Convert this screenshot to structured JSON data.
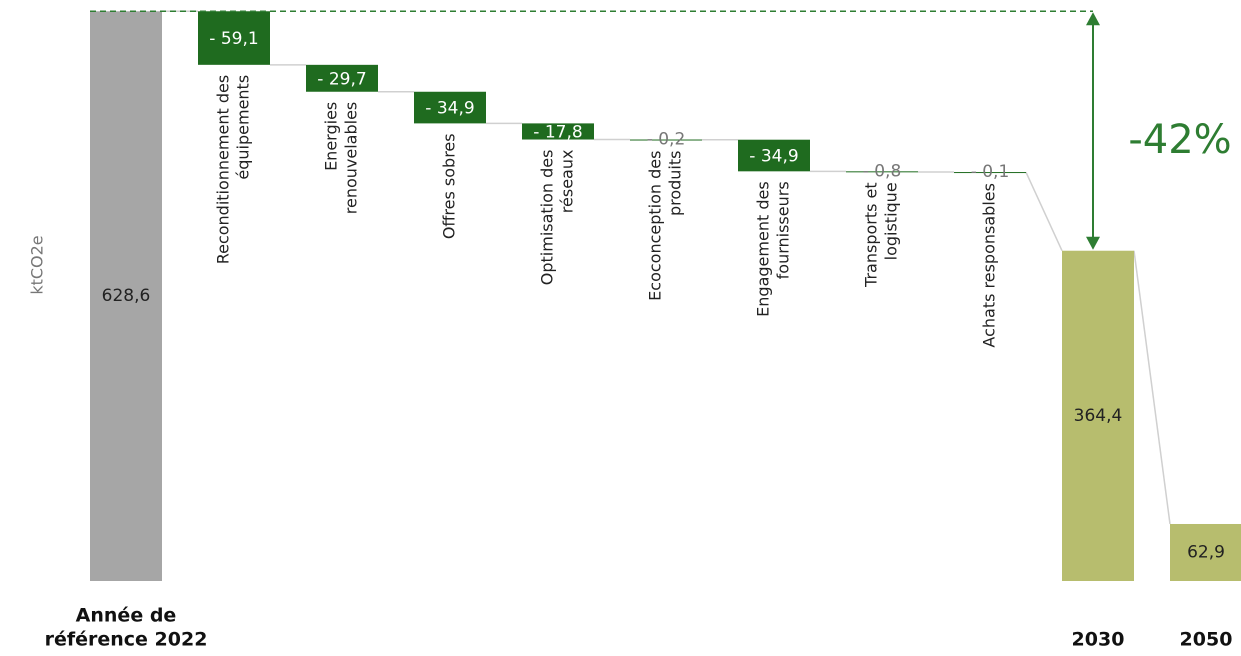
{
  "chart_data": {
    "type": "waterfall",
    "y_label": "ktCO2e",
    "categories": [
      [
        "Année de",
        "référence 2022"
      ],
      [
        "Reconditionnement des",
        "équipements"
      ],
      [
        "Energies",
        "renouvelables"
      ],
      [
        "Offres sobres"
      ],
      [
        "Optimisation des",
        "réseaux"
      ],
      [
        "Ecoconception des",
        "produits"
      ],
      [
        "Engagement des",
        "fournisseurs"
      ],
      [
        "Transports et",
        "logistique"
      ],
      [
        "Achats responsables"
      ],
      [
        "2030"
      ],
      [
        "2050"
      ]
    ],
    "measure": [
      "absolute",
      "relative",
      "relative",
      "relative",
      "relative",
      "relative",
      "relative",
      "relative",
      "relative",
      "absolute",
      "absolute"
    ],
    "values": [
      628.6,
      -59.1,
      -29.7,
      -34.9,
      -17.8,
      -0.2,
      -34.9,
      -0.8,
      -0.1,
      364.4,
      62.9
    ],
    "value_labels": [
      "628,6",
      "- 59,1",
      "- 29,7",
      "- 34,9",
      "- 17,8",
      "- 0,2",
      "- 34,9",
      "- 0,8",
      "- 0,1",
      "364,4",
      "62,9"
    ],
    "colors": [
      "#a6a6a6",
      "#1f6b1f",
      "#1f6b1f",
      "#1f6b1f",
      "#1f6b1f",
      "#1f6b1f",
      "#1f6b1f",
      "#1f6b1f",
      "#1f6b1f",
      "#b7bd6e",
      "#b7bd6e"
    ],
    "connector_color": "#d0d0d0",
    "ylim": [
      0,
      630
    ],
    "annotation": {
      "text": "-42%",
      "color": "#2e7d32"
    }
  }
}
